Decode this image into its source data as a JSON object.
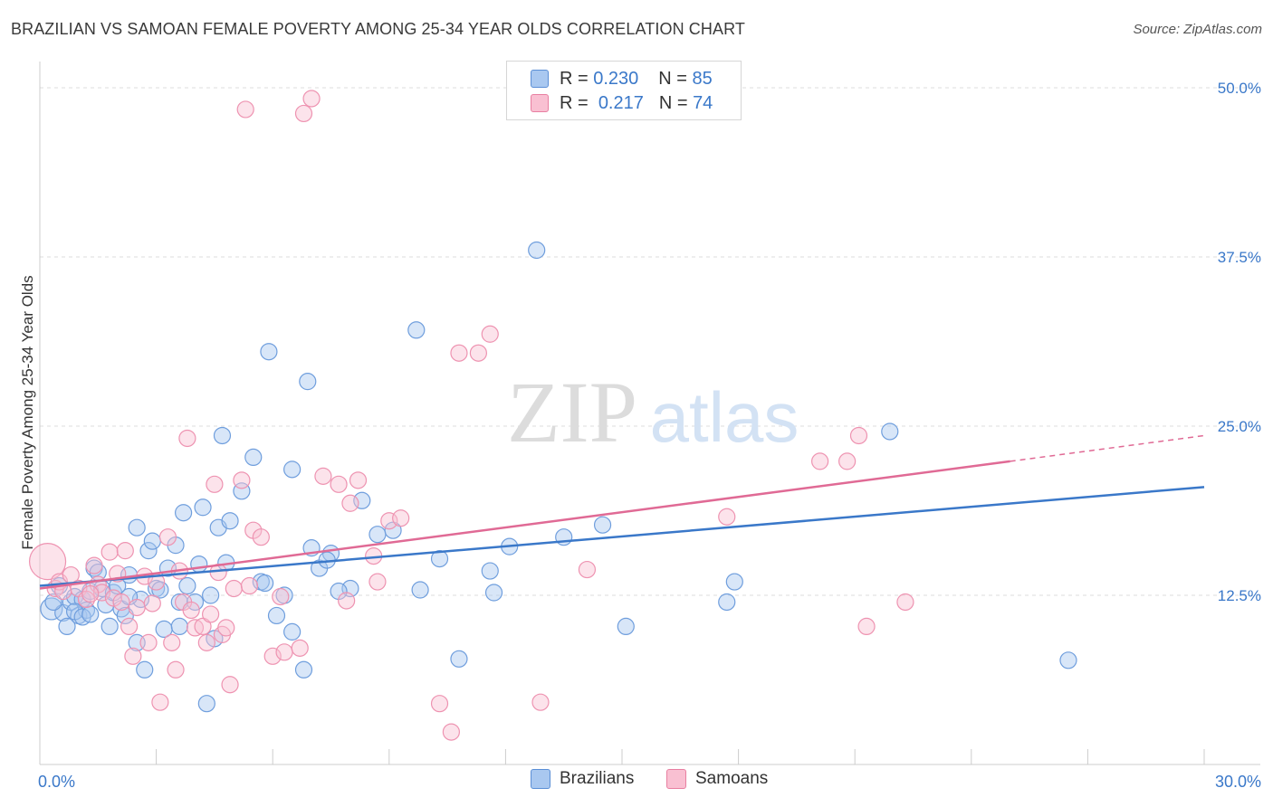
{
  "title": "BRAZILIAN VS SAMOAN FEMALE POVERTY AMONG 25-34 YEAR OLDS CORRELATION CHART",
  "source": "Source: ZipAtlas.com",
  "watermark": {
    "zip": "ZIP",
    "atlas": "atlas"
  },
  "legend_top": {
    "rows": [
      {
        "r_label": "R =",
        "r_value": "0.230",
        "n_label": "N =",
        "n_value": "85",
        "fill": "#a9c8f0",
        "stroke": "#5b8fd6"
      },
      {
        "r_label": "R =",
        "r_value": "0.217",
        "n_label": "N =",
        "n_value": "74",
        "fill": "#f9c0d2",
        "stroke": "#e87fa1"
      }
    ]
  },
  "legend_bottom": [
    {
      "label": "Brazilians",
      "fill": "#a9c8f0",
      "stroke": "#5b8fd6"
    },
    {
      "label": "Samoans",
      "fill": "#f9c0d2",
      "stroke": "#e87fa1"
    }
  ],
  "chart_data": {
    "type": "scatter",
    "title": "BRAZILIAN VS SAMOAN FEMALE POVERTY AMONG 25-34 YEAR OLDS CORRELATION CHART",
    "xlabel": "",
    "ylabel": "Female Poverty Among 25-34 Year Olds",
    "xlim": [
      0,
      30
    ],
    "ylim": [
      0,
      50
    ],
    "x_tick_labels": [
      {
        "value": 0,
        "label": "0.0%"
      },
      {
        "value": 30,
        "label": "30.0%"
      }
    ],
    "y_tick_labels": [
      {
        "value": 12.5,
        "label": "12.5%"
      },
      {
        "value": 25,
        "label": "25.0%"
      },
      {
        "value": 37.5,
        "label": "37.5%"
      },
      {
        "value": 50,
        "label": "50.0%"
      }
    ],
    "grid": true,
    "colors": {
      "brazilians": "#3a78c9",
      "samoans": "#e06a95",
      "axis_labels": "#3a78c9"
    },
    "series": [
      {
        "name": "Brazilians",
        "color": "#5b8fd6",
        "trend": {
          "x": [
            0,
            30
          ],
          "y": [
            13.2,
            20.5
          ]
        },
        "points": [
          [
            0.3,
            11.5
          ],
          [
            0.5,
            13.2
          ],
          [
            0.6,
            11.2
          ],
          [
            0.7,
            10.2
          ],
          [
            0.8,
            12
          ],
          [
            0.9,
            12.4
          ],
          [
            1,
            11
          ],
          [
            1.1,
            12.2
          ],
          [
            1.2,
            11.4
          ],
          [
            1.3,
            12.8
          ],
          [
            1.4,
            14.5
          ],
          [
            1.5,
            14.2
          ],
          [
            1.6,
            13
          ],
          [
            1.7,
            11.8
          ],
          [
            1.8,
            10.2
          ],
          [
            1.9,
            12.7
          ],
          [
            2,
            13.2
          ],
          [
            2.1,
            11.5
          ],
          [
            2.2,
            11
          ],
          [
            2.3,
            14
          ],
          [
            2.5,
            17.5
          ],
          [
            2.6,
            12.2
          ],
          [
            2.7,
            7
          ],
          [
            2.8,
            15.8
          ],
          [
            2.9,
            16.5
          ],
          [
            3,
            13
          ],
          [
            3.2,
            10
          ],
          [
            3.3,
            14.5
          ],
          [
            3.5,
            16.2
          ],
          [
            3.6,
            12
          ],
          [
            3.7,
            18.6
          ],
          [
            3.8,
            13.2
          ],
          [
            4,
            12
          ],
          [
            4.1,
            14.8
          ],
          [
            4.2,
            19
          ],
          [
            4.4,
            12.5
          ],
          [
            4.5,
            9.3
          ],
          [
            4.6,
            17.5
          ],
          [
            4.7,
            24.3
          ],
          [
            4.9,
            18
          ],
          [
            5.2,
            20.2
          ],
          [
            5.5,
            22.7
          ],
          [
            5.7,
            13.5
          ],
          [
            5.9,
            30.5
          ],
          [
            6.1,
            11
          ],
          [
            6.3,
            12.5
          ],
          [
            6.5,
            21.8
          ],
          [
            6.8,
            7
          ],
          [
            6.9,
            28.3
          ],
          [
            7,
            16
          ],
          [
            7.2,
            14.5
          ],
          [
            7.5,
            15.6
          ],
          [
            8,
            13
          ],
          [
            8.3,
            19.5
          ],
          [
            8.7,
            17
          ],
          [
            9.1,
            17.3
          ],
          [
            9.7,
            32.1
          ],
          [
            10.3,
            15.2
          ],
          [
            10.8,
            7.8
          ],
          [
            11.6,
            14.3
          ],
          [
            11.7,
            12.7
          ],
          [
            12.1,
            16.1
          ],
          [
            12.8,
            38
          ],
          [
            13.5,
            16.8
          ],
          [
            14.5,
            17.7
          ],
          [
            15.1,
            10.2
          ],
          [
            17.7,
            12
          ],
          [
            17.9,
            13.5
          ],
          [
            21.9,
            24.6
          ],
          [
            26.5,
            7.7
          ],
          [
            0.35,
            12
          ],
          [
            0.9,
            11.3
          ],
          [
            1.1,
            10.9
          ],
          [
            2.5,
            9
          ],
          [
            4.3,
            4.5
          ],
          [
            5.8,
            13.4
          ],
          [
            6.5,
            9.8
          ],
          [
            7.4,
            15.1
          ],
          [
            2.3,
            12.4
          ],
          [
            3.1,
            12.9
          ],
          [
            4.8,
            14.9
          ],
          [
            1.3,
            11.1
          ],
          [
            3.6,
            10.2
          ],
          [
            7.7,
            12.8
          ],
          [
            9.8,
            12.9
          ]
        ]
      },
      {
        "name": "Samoans",
        "color": "#e87fa1",
        "trend": {
          "x": [
            0,
            25
          ],
          "y": [
            13.0,
            22.4
          ],
          "dashed_to": {
            "x": 30,
            "y": 24.3
          }
        },
        "points": [
          [
            0.2,
            15
          ],
          [
            0.4,
            13
          ],
          [
            0.5,
            13.5
          ],
          [
            0.8,
            14
          ],
          [
            1,
            13
          ],
          [
            1.2,
            12.2
          ],
          [
            1.4,
            14.7
          ],
          [
            1.5,
            13.3
          ],
          [
            1.6,
            12.7
          ],
          [
            1.8,
            15.7
          ],
          [
            1.9,
            12.3
          ],
          [
            2,
            14.1
          ],
          [
            2.2,
            15.8
          ],
          [
            2.3,
            10.2
          ],
          [
            2.4,
            8
          ],
          [
            2.5,
            11.6
          ],
          [
            2.7,
            13.9
          ],
          [
            2.8,
            9
          ],
          [
            2.9,
            11.9
          ],
          [
            3,
            13.5
          ],
          [
            3.1,
            4.6
          ],
          [
            3.3,
            16.8
          ],
          [
            3.4,
            9
          ],
          [
            3.5,
            7
          ],
          [
            3.6,
            14.3
          ],
          [
            3.7,
            12
          ],
          [
            3.8,
            24.1
          ],
          [
            4,
            10.1
          ],
          [
            4.2,
            10.2
          ],
          [
            4.3,
            9
          ],
          [
            4.4,
            11.1
          ],
          [
            4.5,
            20.7
          ],
          [
            4.6,
            14.2
          ],
          [
            4.7,
            9.6
          ],
          [
            4.8,
            10.1
          ],
          [
            4.9,
            5.9
          ],
          [
            5,
            13
          ],
          [
            5.2,
            21
          ],
          [
            5.5,
            17.3
          ],
          [
            5.7,
            16.8
          ],
          [
            6,
            8
          ],
          [
            6.3,
            8.3
          ],
          [
            6.7,
            8.6
          ],
          [
            6.8,
            48.1
          ],
          [
            7,
            49.2
          ],
          [
            7.3,
            21.3
          ],
          [
            7.7,
            20.7
          ],
          [
            8,
            19.3
          ],
          [
            8.2,
            21
          ],
          [
            8.7,
            13.5
          ],
          [
            9,
            18
          ],
          [
            9.3,
            18.2
          ],
          [
            10.3,
            4.5
          ],
          [
            10.8,
            30.4
          ],
          [
            11.3,
            30.4
          ],
          [
            11.6,
            31.8
          ],
          [
            12.9,
            4.6
          ],
          [
            14.1,
            14.4
          ],
          [
            17.7,
            18.3
          ],
          [
            20.1,
            22.4
          ],
          [
            20.8,
            22.4
          ],
          [
            21.1,
            24.3
          ],
          [
            21.3,
            10.2
          ],
          [
            22.3,
            12
          ],
          [
            5.3,
            48.4
          ],
          [
            10.6,
            2.4
          ],
          [
            0.6,
            12.8
          ],
          [
            1.3,
            12.6
          ],
          [
            2.1,
            12
          ],
          [
            3.9,
            11.4
          ],
          [
            5.4,
            13.2
          ],
          [
            6.2,
            12.4
          ],
          [
            7.9,
            12.1
          ],
          [
            8.6,
            15.4
          ]
        ]
      }
    ]
  }
}
